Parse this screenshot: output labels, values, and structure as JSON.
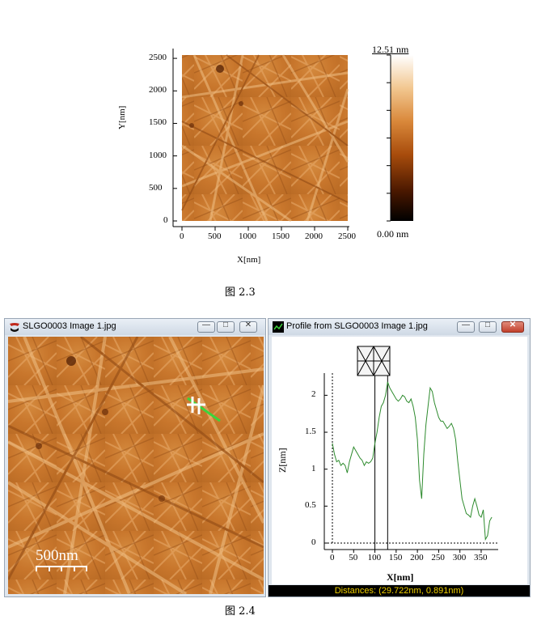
{
  "fig23": {
    "caption": "图 2.3",
    "x_axis_title": "X[nm]",
    "y_axis_title": "Y[nm]",
    "x_ticks": [
      "0",
      "500",
      "1000",
      "1500",
      "2000",
      "2500"
    ],
    "y_ticks": [
      "0",
      "500",
      "1000",
      "1500",
      "2000",
      "2500"
    ],
    "colorbar_max": "12.51 nm",
    "colorbar_min": "0.00 nm"
  },
  "fig24": {
    "caption": "图 2.4",
    "image_window": {
      "title": "SLGO0003 Image 1.jpg",
      "scale_bar_label": "500nm",
      "icon": "app-logo-icon"
    },
    "profile_window": {
      "title": "Profile from SLGO0003 Image 1.jpg",
      "icon": "profile-icon",
      "status": "Distances: (29.722nm, 0.891nm)"
    },
    "window_buttons": {
      "minimize": "—",
      "maximize": "□",
      "close": "✕"
    }
  },
  "chart_data": {
    "type": "line",
    "xlabel": "X[nm]",
    "ylabel": "Z[nm]",
    "xlim": [
      0,
      390
    ],
    "ylim": [
      0,
      2.3
    ],
    "x_ticks": [
      0,
      50,
      100,
      150,
      200,
      250,
      300,
      350
    ],
    "y_ticks": [
      0,
      0.5,
      1,
      1.5,
      2
    ],
    "cursor_lines_x": [
      100,
      130
    ],
    "series": [
      {
        "color": "#2e8b2e",
        "x": [
          0,
          5,
          10,
          15,
          20,
          25,
          30,
          35,
          40,
          45,
          50,
          55,
          60,
          65,
          70,
          75,
          80,
          85,
          90,
          95,
          100,
          105,
          110,
          115,
          120,
          125,
          130,
          135,
          140,
          145,
          150,
          155,
          160,
          165,
          170,
          175,
          180,
          185,
          190,
          195,
          200,
          205,
          210,
          215,
          220,
          225,
          230,
          235,
          240,
          245,
          250,
          255,
          260,
          265,
          270,
          275,
          280,
          285,
          290,
          295,
          300,
          305,
          310,
          315,
          320,
          325,
          330,
          335,
          340,
          345,
          350,
          355,
          360,
          365,
          370,
          375
        ],
        "values": [
          1.35,
          1.2,
          1.1,
          1.12,
          1.05,
          1.08,
          1.05,
          0.95,
          1.1,
          1.2,
          1.3,
          1.25,
          1.2,
          1.15,
          1.12,
          1.05,
          1.1,
          1.08,
          1.1,
          1.15,
          1.35,
          1.5,
          1.7,
          1.85,
          1.9,
          2.0,
          2.18,
          2.1,
          2.05,
          2.0,
          1.95,
          1.92,
          1.95,
          2.0,
          1.98,
          1.92,
          1.9,
          1.95,
          1.85,
          1.7,
          1.4,
          0.85,
          0.6,
          1.2,
          1.6,
          1.85,
          2.1,
          2.05,
          1.9,
          1.8,
          1.7,
          1.65,
          1.65,
          1.6,
          1.55,
          1.58,
          1.62,
          1.55,
          1.4,
          1.1,
          0.85,
          0.6,
          0.5,
          0.4,
          0.38,
          0.35,
          0.5,
          0.6,
          0.5,
          0.38,
          0.35,
          0.45,
          0.05,
          0.1,
          0.3,
          0.35
        ]
      }
    ]
  }
}
